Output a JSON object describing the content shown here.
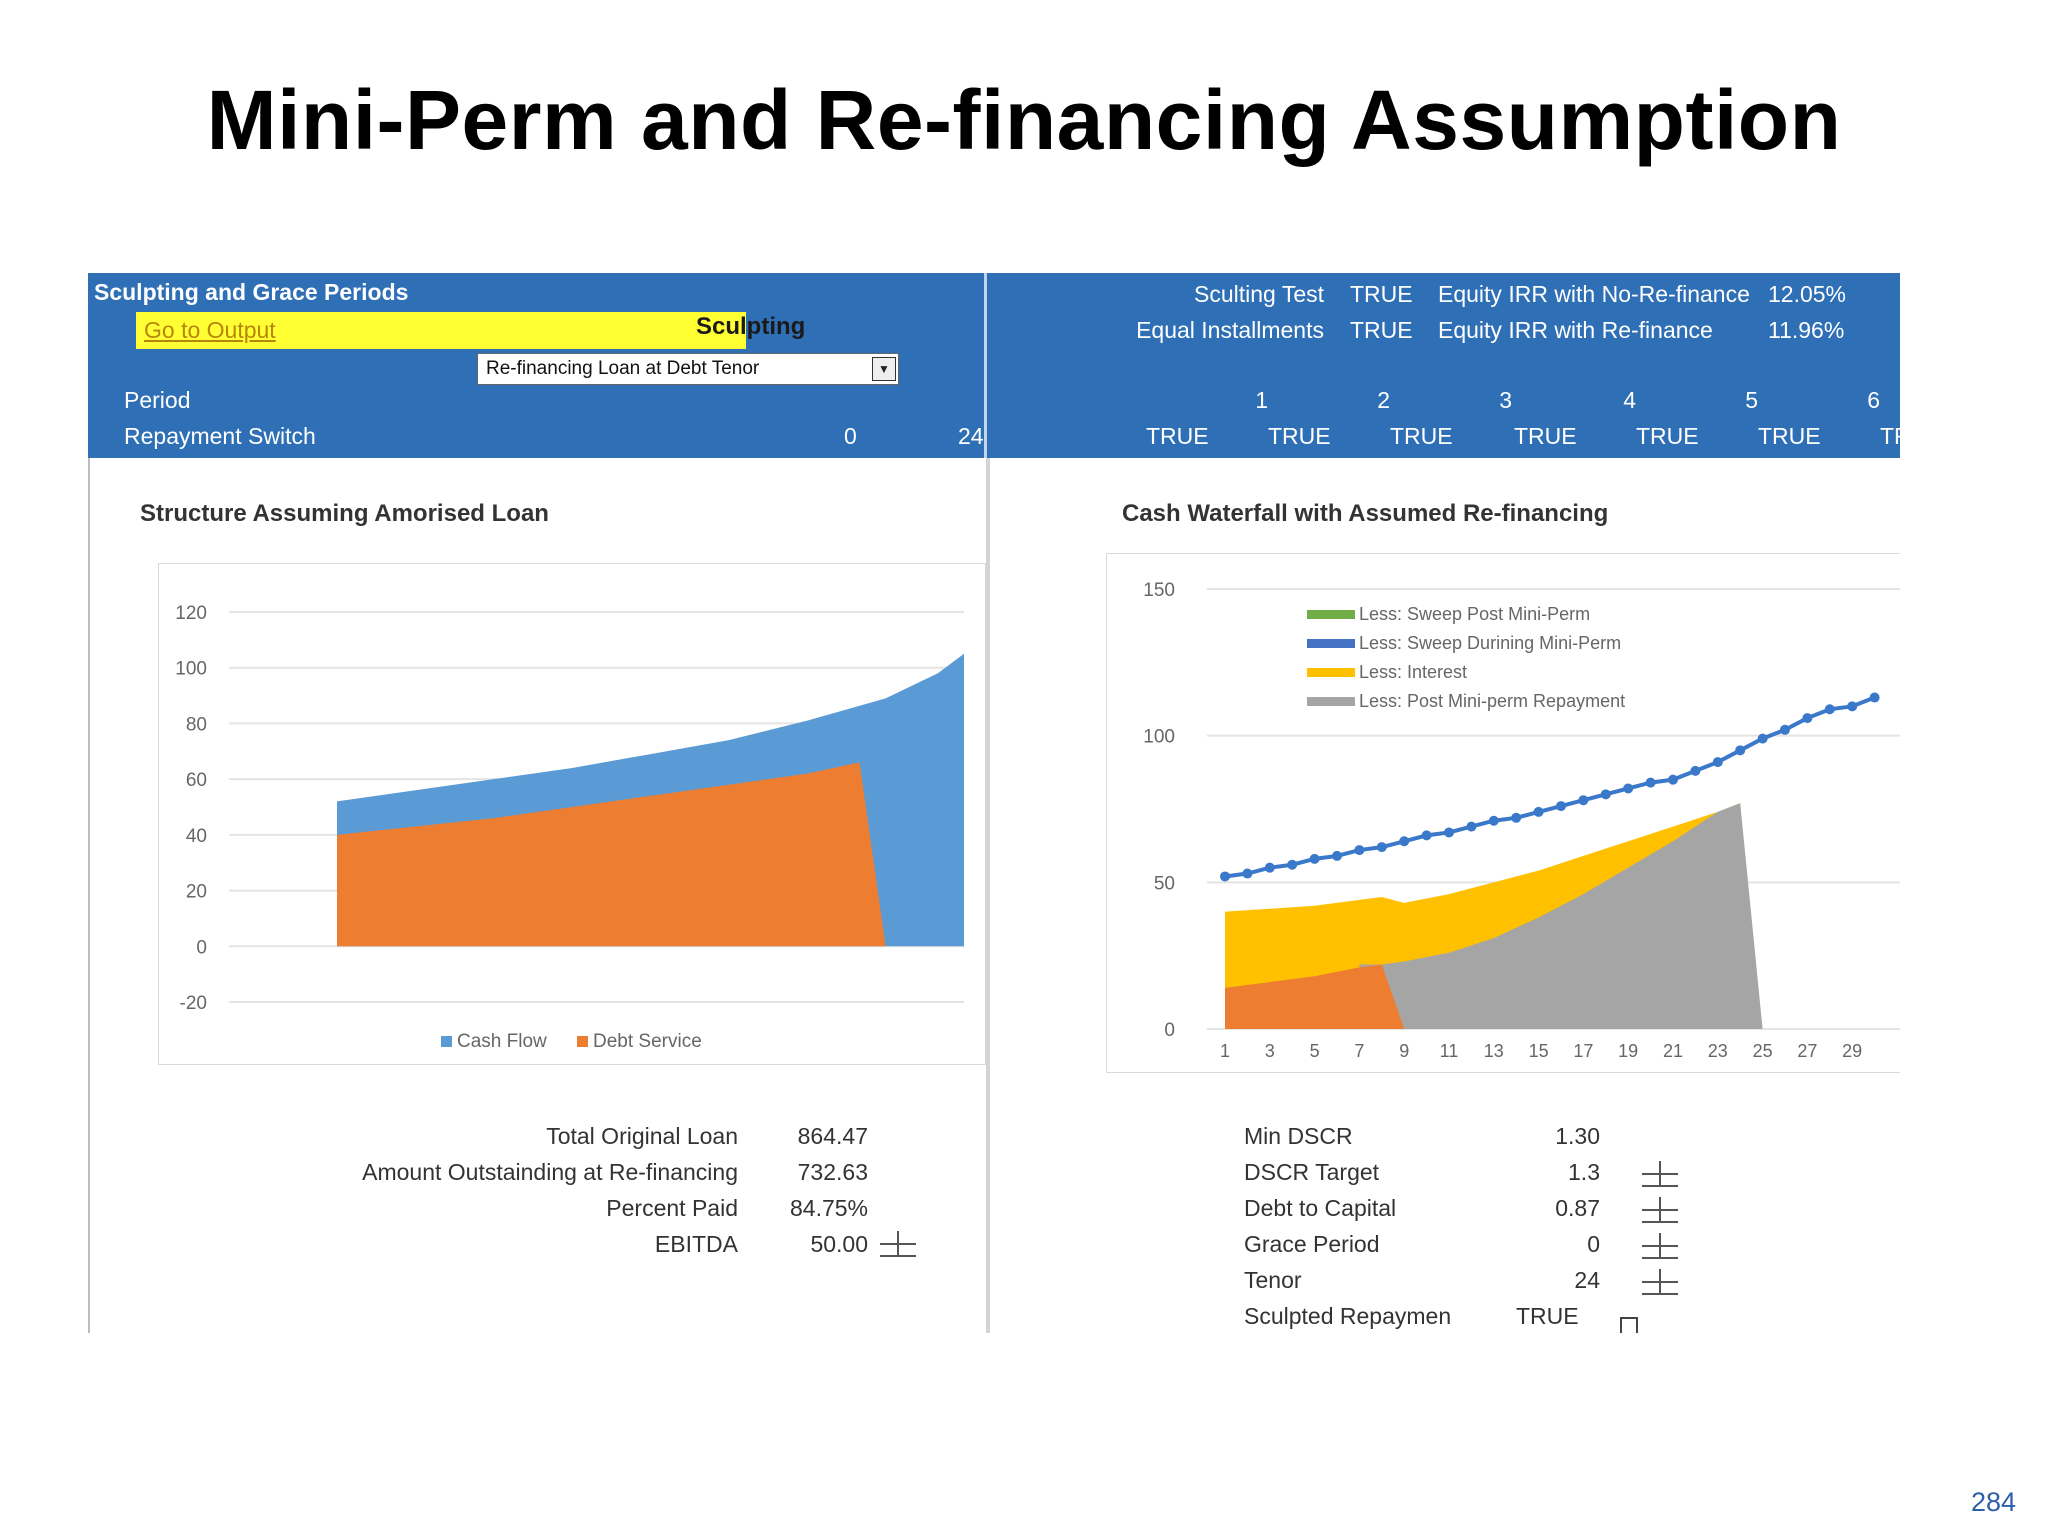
{
  "slide": {
    "title": "Mini-Perm and Re-financing Assumption",
    "page_number": "284"
  },
  "header": {
    "section_title": "Sculpting and Grace Periods",
    "goto_output": "Go to Output",
    "sculpting_label": "Sculpting",
    "sculpting_checked": true,
    "dropdown_value": "Re-financing Loan at Debt Tenor",
    "sculpting_test_label": "Sculting Test",
    "sculpting_test_value": "TRUE",
    "equal_installments_label": "Equal Installments",
    "equal_installments_value": "TRUE",
    "irr_no_refi_label": "Equity IRR with No-Re-finance",
    "irr_no_refi_value": "12.05%",
    "irr_refi_label": "Equity IRR with Re-finance",
    "irr_refi_value": "11.96%",
    "period_label": "Period",
    "repayment_label": "Repayment Switch",
    "repayment_start": "0",
    "repayment_end": "24",
    "periods": [
      "1",
      "2",
      "3",
      "4",
      "5",
      "6"
    ],
    "switch_values": [
      "TRUE",
      "TRUE",
      "TRUE",
      "TRUE",
      "TRUE",
      "TRUE",
      "TR"
    ]
  },
  "left_panel": {
    "chart_title": "Structure Assuming Amorised Loan",
    "stats": [
      {
        "label": "Total Original Loan",
        "value": "864.47"
      },
      {
        "label": "Amount Outstainding at Re-financing",
        "value": "732.63"
      },
      {
        "label": "Percent Paid",
        "value": "84.75%"
      },
      {
        "label": "EBITDA",
        "value": "50.00"
      }
    ]
  },
  "right_panel": {
    "chart_title": "Cash Waterfall with Assumed Re-financing",
    "stats": [
      {
        "label": "Min DSCR",
        "value": "1.30"
      },
      {
        "label": "DSCR Target",
        "value": "1.3"
      },
      {
        "label": "Debt to Capital",
        "value": "0.87"
      },
      {
        "label": "Grace Period",
        "value": "0"
      },
      {
        "label": "Tenor",
        "value": "24"
      },
      {
        "label": "Sculpted Repaymen",
        "value": "TRUE"
      }
    ]
  },
  "chart_data": [
    {
      "type": "area",
      "title": "Structure Assuming Amorised Loan",
      "x": [
        1,
        24
      ],
      "ylim": [
        -20,
        120
      ],
      "yticks": [
        "120",
        "100",
        "80",
        "60",
        "40",
        "20",
        "0",
        "-20"
      ],
      "series": [
        {
          "name": "Cash Flow",
          "color": "#5B9BD5",
          "points": [
            [
              1,
              52
            ],
            [
              4,
              56
            ],
            [
              7,
              60
            ],
            [
              10,
              64
            ],
            [
              13,
              69
            ],
            [
              16,
              74
            ],
            [
              19,
              81
            ],
            [
              22,
              89
            ],
            [
              24,
              98
            ],
            [
              25,
              105
            ]
          ]
        },
        {
          "name": "Debt Service",
          "color": "#ED7D31",
          "points": [
            [
              1,
              40
            ],
            [
              4,
              43
            ],
            [
              7,
              46
            ],
            [
              10,
              50
            ],
            [
              13,
              54
            ],
            [
              16,
              58
            ],
            [
              19,
              62
            ],
            [
              21,
              66
            ],
            [
              22,
              0
            ]
          ]
        }
      ],
      "legend": "bottom",
      "grid": true
    },
    {
      "type": "area",
      "title": "Cash Waterfall with Assumed Re-financing",
      "ylim": [
        0,
        150
      ],
      "yticks": [
        "150",
        "100",
        "50",
        "0"
      ],
      "xticks": [
        "1",
        "3",
        "5",
        "7",
        "9",
        "11",
        "13",
        "15",
        "17",
        "19",
        "21",
        "23",
        "25",
        "27",
        "29"
      ],
      "series": [
        {
          "name": "Less: Sweep Post Mini-Perm",
          "color": "#70AD47",
          "values": []
        },
        {
          "name": "Less: Sweep Durining Mini-Perm",
          "color": "#4472C4",
          "values": []
        },
        {
          "name": "Less: Interest",
          "color": "#FFC000",
          "points": [
            [
              1,
              40
            ],
            [
              3,
              41
            ],
            [
              5,
              42
            ],
            [
              7,
              44
            ],
            [
              8,
              45
            ],
            [
              9,
              43
            ],
            [
              11,
              46
            ],
            [
              13,
              50
            ],
            [
              15,
              54
            ],
            [
              17,
              59
            ],
            [
              19,
              64
            ],
            [
              21,
              69
            ],
            [
              23,
              74
            ],
            [
              24,
              77
            ]
          ]
        },
        {
          "name": "Less: Post Mini-perm Repayment",
          "color": "#A5A5A5",
          "points": [
            [
              7,
              22
            ],
            [
              8,
              22
            ],
            [
              9,
              23
            ],
            [
              11,
              26
            ],
            [
              13,
              31
            ],
            [
              15,
              38
            ],
            [
              17,
              46
            ],
            [
              19,
              55
            ],
            [
              21,
              64
            ],
            [
              23,
              74
            ],
            [
              24,
              77
            ],
            [
              25,
              0
            ]
          ]
        },
        {
          "name": "Debt Service",
          "color": "#ED7D31",
          "points": [
            [
              1,
              14
            ],
            [
              3,
              16
            ],
            [
              5,
              18
            ],
            [
              7,
              21
            ],
            [
              8,
              22
            ],
            [
              9,
              0
            ]
          ]
        }
      ],
      "line_series": {
        "name": "Cash Flow",
        "color": "#3A78C9",
        "values": [
          52,
          53,
          55,
          56,
          58,
          59,
          61,
          62,
          64,
          66,
          67,
          69,
          71,
          72,
          74,
          76,
          78,
          80,
          82,
          84,
          85,
          88,
          91,
          95,
          99,
          102,
          106,
          109,
          110,
          113
        ]
      },
      "legend": "top-center",
      "grid": true
    }
  ]
}
